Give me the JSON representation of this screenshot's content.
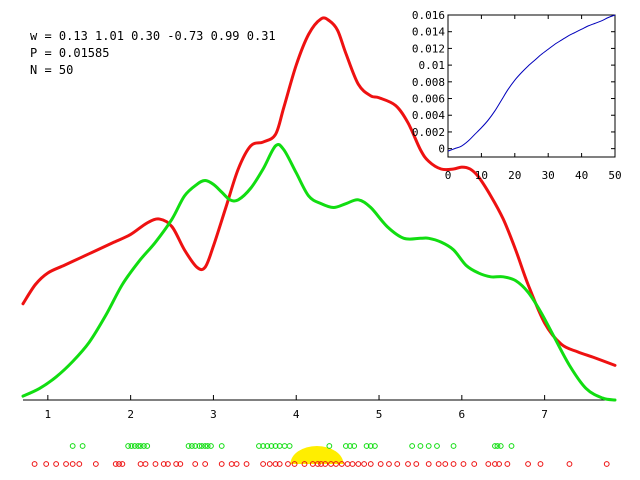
{
  "annotations": {
    "w": "w = 0.13 1.01 0.30 -0.73 0.99 0.31",
    "p": "P = 0.01585",
    "n": "N = 50"
  },
  "colors": {
    "red": "#ee1111",
    "green": "#11dd11",
    "blue": "#0000bb",
    "yellow": "#ffee00"
  },
  "chart_data": [
    {
      "type": "line",
      "title": "",
      "xlabel": "",
      "ylabel": "",
      "xlim": [
        0.7,
        7.85
      ],
      "x_ticks": [
        1,
        2,
        3,
        4,
        5,
        6,
        7
      ],
      "y_ticks_shown": false,
      "grid": false,
      "legend": "none",
      "series": [
        {
          "color": "red",
          "x": [
            0.7,
            0.85,
            1.0,
            1.2,
            1.4,
            1.6,
            1.8,
            2.0,
            2.2,
            2.35,
            2.5,
            2.65,
            2.8,
            2.9,
            3.0,
            3.15,
            3.3,
            3.45,
            3.6,
            3.75,
            3.85,
            4.0,
            4.15,
            4.3,
            4.4,
            4.5,
            4.6,
            4.75,
            4.9,
            5.0,
            5.2,
            5.35,
            5.5,
            5.6,
            5.75,
            5.9,
            6.0,
            6.1,
            6.2,
            6.35,
            6.5,
            6.65,
            6.8,
            7.0,
            7.2,
            7.4,
            7.6,
            7.85
          ],
          "y": [
            0.25,
            0.3,
            0.33,
            0.35,
            0.37,
            0.39,
            0.41,
            0.43,
            0.46,
            0.47,
            0.45,
            0.39,
            0.345,
            0.345,
            0.4,
            0.5,
            0.6,
            0.66,
            0.67,
            0.69,
            0.76,
            0.87,
            0.95,
            0.99,
            0.985,
            0.96,
            0.9,
            0.82,
            0.79,
            0.785,
            0.765,
            0.72,
            0.65,
            0.62,
            0.6,
            0.6,
            0.605,
            0.6,
            0.58,
            0.53,
            0.47,
            0.39,
            0.3,
            0.2,
            0.145,
            0.125,
            0.11,
            0.09
          ]
        },
        {
          "color": "green",
          "x": [
            0.7,
            0.9,
            1.1,
            1.3,
            1.5,
            1.7,
            1.9,
            2.1,
            2.3,
            2.5,
            2.65,
            2.8,
            2.9,
            3.0,
            3.1,
            3.2,
            3.3,
            3.45,
            3.6,
            3.75,
            3.85,
            4.0,
            4.15,
            4.3,
            4.45,
            4.6,
            4.75,
            4.9,
            5.1,
            5.3,
            5.5,
            5.6,
            5.75,
            5.9,
            6.05,
            6.2,
            6.35,
            6.5,
            6.65,
            6.8,
            6.95,
            7.1,
            7.3,
            7.5,
            7.7,
            7.85
          ],
          "y": [
            0.01,
            0.03,
            0.06,
            0.1,
            0.15,
            0.22,
            0.3,
            0.36,
            0.41,
            0.47,
            0.53,
            0.56,
            0.57,
            0.56,
            0.54,
            0.52,
            0.52,
            0.55,
            0.6,
            0.66,
            0.65,
            0.59,
            0.53,
            0.51,
            0.5,
            0.51,
            0.52,
            0.5,
            0.45,
            0.42,
            0.42,
            0.42,
            0.41,
            0.39,
            0.35,
            0.33,
            0.32,
            0.32,
            0.31,
            0.28,
            0.23,
            0.17,
            0.09,
            0.03,
            0.005,
            0.0
          ]
        }
      ]
    },
    {
      "type": "line",
      "title": "",
      "xlabel": "",
      "ylabel": "",
      "xlim": [
        0,
        50
      ],
      "ylim": [
        -0.001,
        0.016
      ],
      "x_ticks": [
        0,
        10,
        20,
        30,
        40,
        50
      ],
      "x_tick_labels": [
        "0",
        "10",
        "20",
        "30",
        "40",
        "50"
      ],
      "y_ticks": [
        0,
        0.002,
        0.004,
        0.006,
        0.008,
        0.01,
        0.012,
        0.014,
        0.016
      ],
      "y_tick_labels": [
        "0",
        "0.002",
        "0.004",
        "0.006",
        "0.008",
        "0.01",
        "0.012",
        "0.014",
        "0.016"
      ],
      "grid": false,
      "legend": "none",
      "series": [
        {
          "color": "blue",
          "x": [
            0,
            2,
            4,
            6,
            8,
            10,
            12,
            14,
            16,
            18,
            20,
            22,
            24,
            26,
            28,
            30,
            32,
            34,
            36,
            38,
            40,
            42,
            44,
            46,
            48,
            50
          ],
          "y": [
            -0.0003,
            0.0,
            0.0003,
            0.0009,
            0.0017,
            0.0025,
            0.0034,
            0.0045,
            0.0058,
            0.0071,
            0.0082,
            0.0091,
            0.0099,
            0.0106,
            0.0113,
            0.0119,
            0.0125,
            0.013,
            0.0135,
            0.0139,
            0.0143,
            0.0147,
            0.015,
            0.0153,
            0.0157,
            0.016
          ]
        }
      ]
    },
    {
      "type": "scatter",
      "title": "",
      "xlim": [
        0.7,
        7.85
      ],
      "marker": "open-circle",
      "series": [
        {
          "color": "green",
          "row": "upper",
          "x": [
            1.3,
            1.42,
            1.97,
            2.01,
            2.05,
            2.09,
            2.12,
            2.16,
            2.2,
            2.7,
            2.74,
            2.78,
            2.83,
            2.86,
            2.9,
            2.93,
            2.97,
            3.1,
            3.55,
            3.6,
            3.65,
            3.7,
            3.75,
            3.8,
            3.86,
            3.92,
            4.4,
            4.6,
            4.65,
            4.7,
            4.85,
            4.9,
            4.95,
            5.4,
            5.5,
            5.6,
            5.7,
            5.9,
            6.4,
            6.43,
            6.47,
            6.6
          ]
        },
        {
          "color": "red",
          "row": "lower",
          "x": [
            0.84,
            0.98,
            1.1,
            1.22,
            1.3,
            1.38,
            1.58,
            1.82,
            1.86,
            1.9,
            2.12,
            2.18,
            2.3,
            2.4,
            2.45,
            2.55,
            2.6,
            2.78,
            2.9,
            3.1,
            3.22,
            3.28,
            3.4,
            3.6,
            3.68,
            3.75,
            3.8,
            3.9,
            3.98,
            4.1,
            4.2,
            4.26,
            4.3,
            4.35,
            4.42,
            4.48,
            4.55,
            4.62,
            4.68,
            4.75,
            4.82,
            4.9,
            5.02,
            5.12,
            5.22,
            5.35,
            5.45,
            5.6,
            5.72,
            5.8,
            5.9,
            6.02,
            6.15,
            6.32,
            6.4,
            6.45,
            6.55,
            6.8,
            6.95,
            7.3,
            7.75
          ]
        }
      ],
      "highlight": {
        "color": "yellow",
        "x_center": 4.25,
        "half_width": 0.32
      }
    }
  ]
}
